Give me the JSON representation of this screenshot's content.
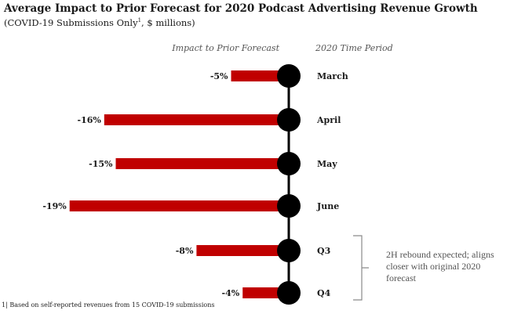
{
  "header": {
    "title": "Average Impact to Prior Forecast for 2020 Podcast Advertising Revenue Growth",
    "subtitle": "(COVID-19 Submissions Only",
    "subtitle_sup": "1",
    "subtitle_tail": ", $ millions)"
  },
  "chart_data": {
    "type": "bar",
    "orientation": "horizontal",
    "title": "Average Impact to Prior Forecast for 2020 Podcast Advertising Revenue Growth",
    "subtitle": "(COVID-19 Submissions Only¹, $ millions)",
    "column_headers": {
      "impact": "Impact to Prior Forecast",
      "period": "2020 Time Period"
    },
    "categories": [
      "March",
      "April",
      "May",
      "June",
      "Q3",
      "Q4"
    ],
    "values": [
      -5,
      -16,
      -15,
      -19,
      -8,
      -4
    ],
    "labels": [
      "-5%",
      "-16%",
      "-15%",
      "-19%",
      "-8%",
      "-4%"
    ],
    "unit": "%",
    "xlim": [
      -20,
      0
    ],
    "grid": false,
    "legend": "none",
    "colors": {
      "bar": "#c00000",
      "marker": "#000000",
      "axis": "#000000",
      "bracket": "#8a8a8a"
    },
    "annotation": "2H rebound expected; aligns closer with original 2020 forecast"
  },
  "footnote": "1| Based on self-reported revenues from 15 COVID-19 submissions"
}
